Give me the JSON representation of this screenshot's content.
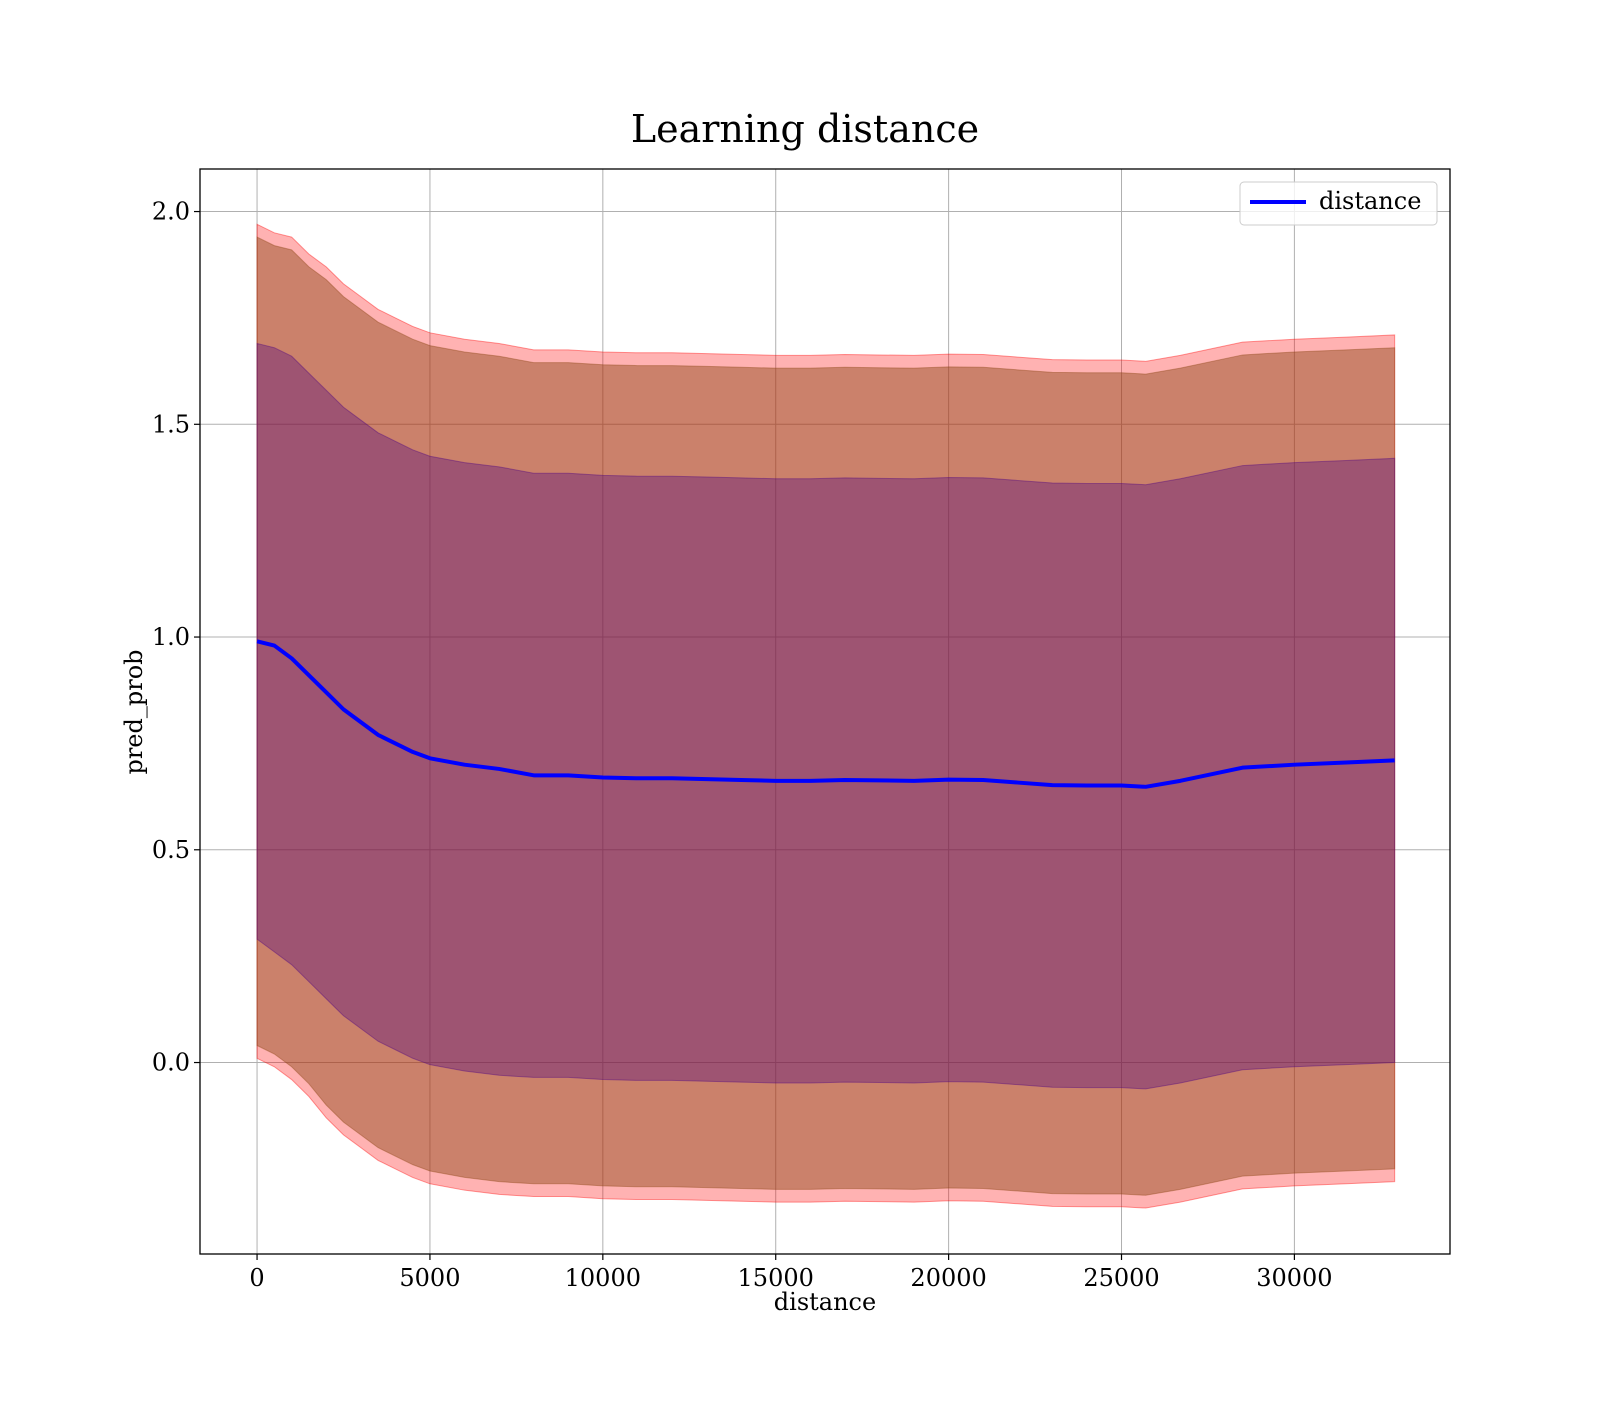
{
  "chart_data": {
    "type": "line",
    "title": "Learning distance",
    "xlabel": "distance",
    "ylabel": "pred_prob",
    "xlim": [
      -1650,
      34500
    ],
    "ylim": [
      -0.45,
      2.1
    ],
    "xticks": [
      0,
      5000,
      10000,
      15000,
      20000,
      25000,
      30000
    ],
    "xtick_labels": [
      "0",
      "5000",
      "10000",
      "15000",
      "20000",
      "25000",
      "30000"
    ],
    "yticks": [
      0.0,
      0.5,
      1.0,
      1.5,
      2.0
    ],
    "ytick_labels": [
      "0.0",
      "0.5",
      "1.0",
      "1.5",
      "2.0"
    ],
    "grid": true,
    "legend": {
      "position": "top-right",
      "entries": [
        "distance"
      ]
    },
    "colors": {
      "line": "#0000ff",
      "outer_band": "#ff0000",
      "inner_band": "#8b4513",
      "core_band": "#4b0082",
      "grid": "#b0b0b0"
    },
    "series": [
      {
        "name": "distance",
        "x": [
          0,
          500,
          1000,
          1500,
          2000,
          2500,
          3000,
          3500,
          4000,
          4500,
          5000,
          6000,
          7000,
          8000,
          9000,
          10000,
          11000,
          12000,
          13000,
          14000,
          15000,
          16000,
          17000,
          18000,
          19000,
          20000,
          21000,
          22000,
          23000,
          24000,
          25000,
          25700,
          26700,
          28500,
          30000,
          31500,
          32900
        ],
        "values": [
          0.99,
          0.98,
          0.95,
          0.91,
          0.87,
          0.83,
          0.8,
          0.77,
          0.75,
          0.73,
          0.715,
          0.7,
          0.69,
          0.675,
          0.675,
          0.67,
          0.668,
          0.668,
          0.666,
          0.664,
          0.662,
          0.662,
          0.664,
          0.663,
          0.662,
          0.665,
          0.664,
          0.658,
          0.652,
          0.651,
          0.651,
          0.648,
          0.662,
          0.693,
          0.7,
          0.705,
          0.71
        ]
      }
    ],
    "bands": [
      {
        "name": "outer",
        "lower": [
          0.01,
          -0.01,
          -0.04,
          -0.08,
          -0.13,
          -0.17,
          -0.2,
          -0.23,
          -0.25,
          -0.27,
          -0.285,
          -0.3,
          -0.31,
          -0.315,
          -0.315,
          -0.32,
          -0.322,
          -0.322,
          -0.324,
          -0.326,
          -0.328,
          -0.328,
          -0.326,
          -0.327,
          -0.328,
          -0.325,
          -0.326,
          -0.332,
          -0.338,
          -0.339,
          -0.339,
          -0.342,
          -0.328,
          -0.297,
          -0.29,
          -0.285,
          -0.28
        ],
        "upper": [
          1.97,
          1.95,
          1.94,
          1.9,
          1.87,
          1.83,
          1.8,
          1.77,
          1.75,
          1.73,
          1.715,
          1.7,
          1.69,
          1.675,
          1.675,
          1.67,
          1.668,
          1.668,
          1.666,
          1.664,
          1.662,
          1.662,
          1.664,
          1.663,
          1.662,
          1.665,
          1.664,
          1.658,
          1.652,
          1.651,
          1.651,
          1.648,
          1.662,
          1.693,
          1.7,
          1.705,
          1.71
        ]
      },
      {
        "name": "inner",
        "lower": [
          0.04,
          0.02,
          -0.01,
          -0.05,
          -0.1,
          -0.14,
          -0.17,
          -0.2,
          -0.22,
          -0.24,
          -0.255,
          -0.27,
          -0.28,
          -0.285,
          -0.285,
          -0.29,
          -0.292,
          -0.292,
          -0.294,
          -0.296,
          -0.298,
          -0.298,
          -0.296,
          -0.297,
          -0.298,
          -0.295,
          -0.296,
          -0.302,
          -0.308,
          -0.309,
          -0.309,
          -0.312,
          -0.298,
          -0.267,
          -0.26,
          -0.255,
          -0.25
        ],
        "upper": [
          1.94,
          1.92,
          1.91,
          1.87,
          1.84,
          1.8,
          1.77,
          1.74,
          1.72,
          1.7,
          1.685,
          1.67,
          1.66,
          1.645,
          1.645,
          1.64,
          1.638,
          1.638,
          1.636,
          1.634,
          1.632,
          1.632,
          1.634,
          1.633,
          1.632,
          1.635,
          1.634,
          1.628,
          1.622,
          1.621,
          1.621,
          1.618,
          1.632,
          1.663,
          1.67,
          1.675,
          1.68
        ]
      },
      {
        "name": "core",
        "lower": [
          0.29,
          0.26,
          0.23,
          0.19,
          0.15,
          0.11,
          0.08,
          0.05,
          0.03,
          0.01,
          -0.005,
          -0.02,
          -0.03,
          -0.035,
          -0.035,
          -0.04,
          -0.042,
          -0.042,
          -0.044,
          -0.046,
          -0.048,
          -0.048,
          -0.046,
          -0.047,
          -0.048,
          -0.045,
          -0.046,
          -0.052,
          -0.058,
          -0.059,
          -0.059,
          -0.062,
          -0.048,
          -0.017,
          -0.01,
          -0.005,
          0.0
        ],
        "upper": [
          1.69,
          1.68,
          1.66,
          1.62,
          1.58,
          1.54,
          1.51,
          1.48,
          1.46,
          1.44,
          1.425,
          1.41,
          1.4,
          1.385,
          1.385,
          1.38,
          1.378,
          1.378,
          1.376,
          1.374,
          1.372,
          1.372,
          1.374,
          1.373,
          1.372,
          1.375,
          1.374,
          1.368,
          1.362,
          1.361,
          1.361,
          1.358,
          1.372,
          1.403,
          1.41,
          1.415,
          1.42
        ]
      }
    ]
  }
}
